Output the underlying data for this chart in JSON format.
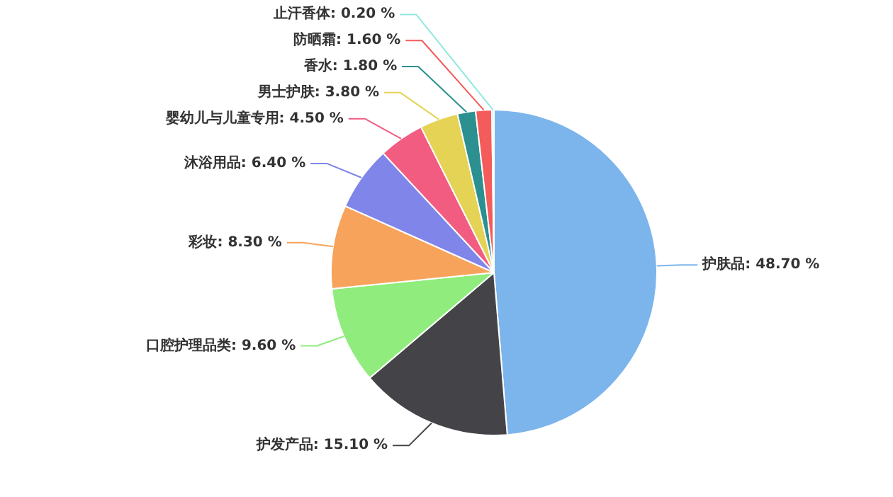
{
  "chart_data": {
    "type": "pie",
    "categories": [
      "护肤品",
      "护发产品",
      "口腔护理品类",
      "彩妆",
      "沐浴用品",
      "婴幼儿与儿童专用",
      "男士护肤",
      "香水",
      "防晒霜",
      "止汗香体"
    ],
    "values": [
      48.7,
      15.1,
      9.6,
      8.3,
      6.4,
      4.5,
      3.8,
      1.8,
      1.6,
      0.2
    ],
    "value_labels": [
      "48.70 %",
      "15.10 %",
      "9.60 %",
      "8.30 %",
      "6.40 %",
      "4.50 %",
      "3.80 %",
      "1.80 %",
      "1.60 %",
      "0.20 %"
    ],
    "colors": [
      "#7cb5ec",
      "#434348",
      "#90ed7d",
      "#f7a35c",
      "#8085e9",
      "#f15c80",
      "#e4d354",
      "#2b908f",
      "#f45b5b",
      "#91e8e1"
    ]
  }
}
